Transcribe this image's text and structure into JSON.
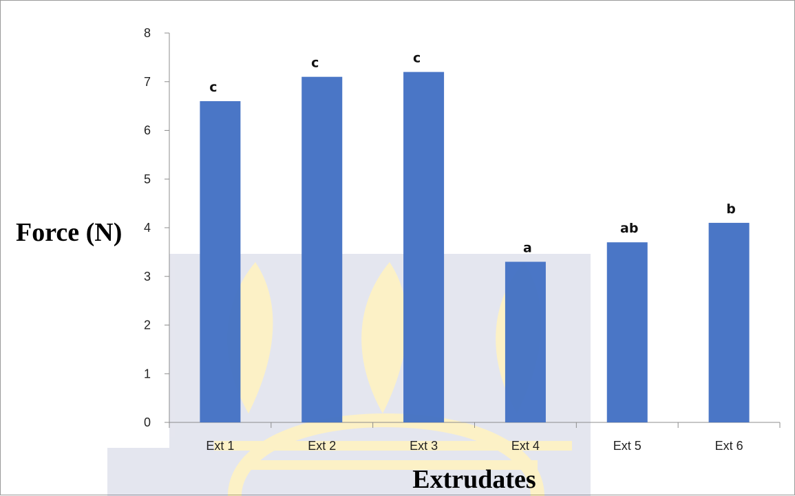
{
  "chart_data": {
    "type": "bar",
    "categories": [
      "Ext 1",
      "Ext 2",
      "Ext 3",
      "Ext 4",
      "Ext 5",
      "Ext 6"
    ],
    "values": [
      6.6,
      7.1,
      7.2,
      3.3,
      3.7,
      4.1
    ],
    "data_labels": [
      "c",
      "c",
      "c",
      "a",
      "ab",
      "b"
    ],
    "xlabel": "Extrudates",
    "ylabel": "Force (N)",
    "ylim": [
      0,
      8
    ],
    "yticks": [
      "0",
      "1",
      "2",
      "3",
      "4",
      "5",
      "6",
      "7",
      "8"
    ],
    "grid": false,
    "legend": "none",
    "bar_color": "#4472C4",
    "watermark": "university seal (faint)"
  }
}
